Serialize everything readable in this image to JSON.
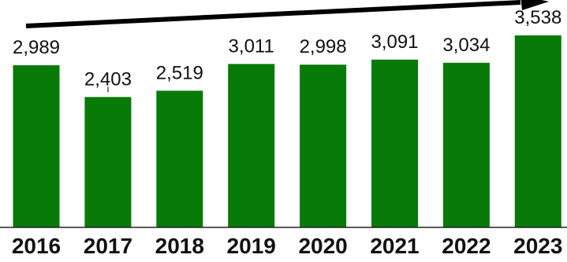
{
  "chart_data": {
    "type": "bar",
    "categories": [
      "2016",
      "2017",
      "2018",
      "2019",
      "2020",
      "2021",
      "2022",
      "2023"
    ],
    "values": [
      2989,
      2403,
      2519,
      3011,
      2998,
      3091,
      3034,
      3538
    ],
    "value_labels": [
      "2,989",
      "2,403",
      "2,519",
      "3,011",
      "2,998",
      "3,091",
      "3,034",
      "3,538"
    ],
    "ylim": [
      0,
      3600
    ],
    "grid": false,
    "legend": "none",
    "trend_arrow": true,
    "colors": {
      "bar": "#077a07",
      "text": "#111111",
      "axis": "#222222",
      "arrow": "#000000"
    }
  }
}
